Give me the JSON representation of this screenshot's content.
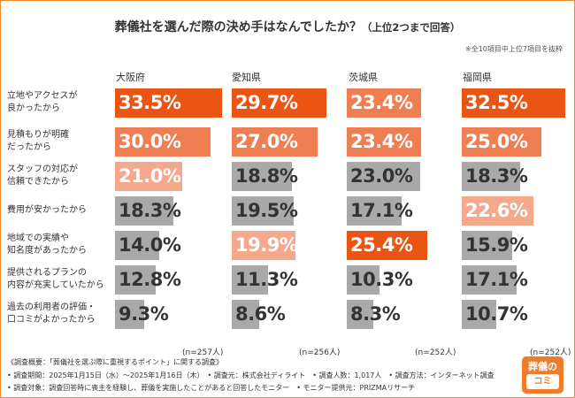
{
  "title": "葬儀社を選んだ際の決め手はなんでしたか？",
  "title_sub": "（上位2つまで回答）",
  "note": "※全10項目中上位7項目を抜粋",
  "chart_data": {
    "type": "bar",
    "unit": "%",
    "categories": [
      "立地やアクセスが\n良かったから",
      "見積もりが明確\nだったから",
      "スタッフの対応が\n信頼できたから",
      "費用が安かったから",
      "地域での実績や\n知名度があったから",
      "提供されるプランの\n内容が充実していたから",
      "過去の利用者の評価・\n口コミがよかったから"
    ],
    "series": [
      {
        "name": "大阪府",
        "n": "(n=257人)",
        "values": [
          33.5,
          30.0,
          21.0,
          18.3,
          14.0,
          12.8,
          9.3
        ],
        "value_labels": [
          "33.5%",
          "30.0%",
          "21.0%",
          "18.3%",
          "14.0%",
          "12.8%",
          "9.3%"
        ]
      },
      {
        "name": "愛知県",
        "n": "(n=256人)",
        "values": [
          29.7,
          27.0,
          18.8,
          19.5,
          19.9,
          11.3,
          8.6
        ],
        "value_labels": [
          "29.7%",
          "27.0%",
          "18.8%",
          "19.5%",
          "19.9%",
          "11.3%",
          "8.6%"
        ]
      },
      {
        "name": "茨城県",
        "n": "(n=252人)",
        "values": [
          23.4,
          23.4,
          23.0,
          17.1,
          25.4,
          10.3,
          8.3
        ],
        "value_labels": [
          "23.4%",
          "23.4%",
          "23.0%",
          "17.1%",
          "25.4%",
          "10.3%",
          "8.3%"
        ]
      },
      {
        "name": "福岡県",
        "n": "(n=252人)",
        "values": [
          32.5,
          25.0,
          18.3,
          22.6,
          15.9,
          17.1,
          10.7
        ],
        "value_labels": [
          "32.5%",
          "25.0%",
          "18.3%",
          "22.6%",
          "15.9%",
          "17.1%",
          "10.7%"
        ]
      }
    ],
    "highlight_rank": [
      "1st",
      "2nd",
      "3rd"
    ],
    "colors": {
      "rank1": "#ea5514",
      "rank2": "#ef7e52",
      "rank3": "#f4a88c",
      "other": "#a9a9a9",
      "rank1_text": "#ffffff",
      "rank2_text": "#ffffff",
      "rank3_text": "#ffffff",
      "other_text": "#333333"
    }
  },
  "footer": {
    "line1": "《調査概要：「葬儀社を選ぶ際に重視するポイント」に関する調査》",
    "line2": "• 調査期間：2025年1月15日（水）〜2025年1月16日（木）　• 調査元：株式会社ディライト　• 調査人数：1,017人　• 調査方法：インターネット調査",
    "line3": "• 調査対象：調査回答時に喪主を経験し、葬儀を実施したことがあると回答したモニター　• モニター提供元：PRIZMAリサーチ"
  },
  "logo": {
    "line1": "葬儀の",
    "line2": "コミ"
  }
}
